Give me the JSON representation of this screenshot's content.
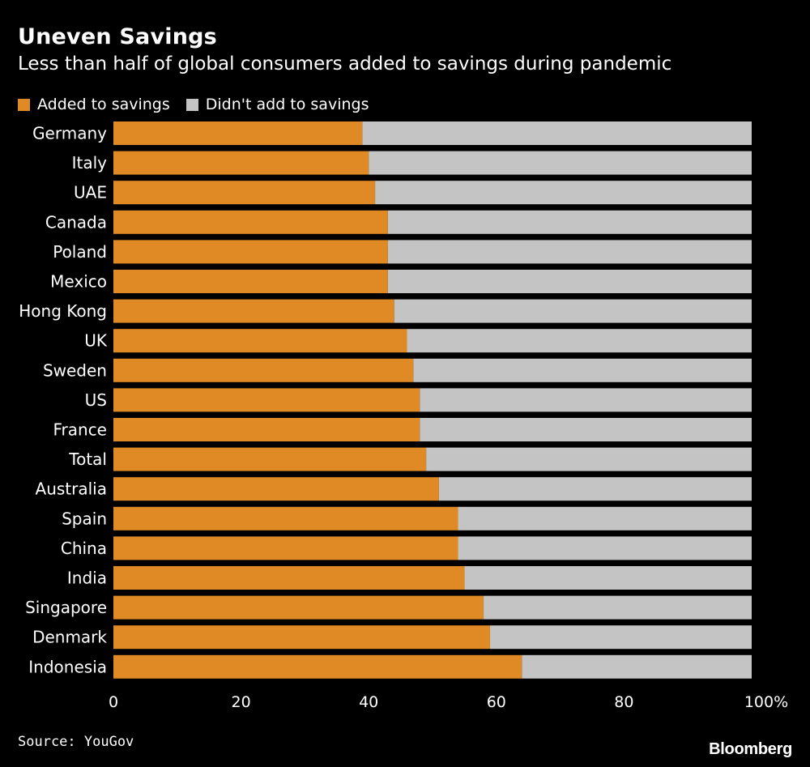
{
  "header": {
    "title": "Uneven Savings",
    "subtitle": "Less than half of global consumers added to savings during pandemic"
  },
  "legend": {
    "items": [
      {
        "label": "Added to savings",
        "color": "#e08a26"
      },
      {
        "label": "Didn't add to savings",
        "color": "#c4c4c4"
      }
    ]
  },
  "footer": {
    "source": "Source: YouGov",
    "brand": "Bloomberg"
  },
  "chart_data": {
    "type": "bar",
    "orientation": "horizontal",
    "stacked": true,
    "title": "Uneven Savings",
    "subtitle": "Less than half of global consumers added to savings during pandemic",
    "categories": [
      "Germany",
      "Italy",
      "UAE",
      "Canada",
      "Poland",
      "Mexico",
      "Hong Kong",
      "UK",
      "Sweden",
      "US",
      "France",
      "Total",
      "Australia",
      "Spain",
      "China",
      "India",
      "Singapore",
      "Denmark",
      "Indonesia"
    ],
    "series": [
      {
        "name": "Added to savings",
        "color": "#e08a26",
        "values": [
          39,
          40,
          41,
          43,
          43,
          43,
          44,
          46,
          47,
          48,
          48,
          49,
          51,
          54,
          54,
          55,
          58,
          59,
          64
        ]
      },
      {
        "name": "Didn't add to savings",
        "color": "#c4c4c4",
        "values": [
          61,
          60,
          59,
          57,
          57,
          57,
          56,
          54,
          53,
          52,
          52,
          51,
          49,
          46,
          46,
          45,
          42,
          41,
          36
        ]
      }
    ],
    "xlim": [
      0,
      100
    ],
    "xticks": [
      0,
      20,
      40,
      60,
      80,
      100
    ],
    "xtick_labels": [
      "0",
      "20",
      "40",
      "60",
      "80",
      "100%"
    ],
    "xlabel": "",
    "ylabel": "",
    "grid": false,
    "legend_position": "top-left"
  }
}
